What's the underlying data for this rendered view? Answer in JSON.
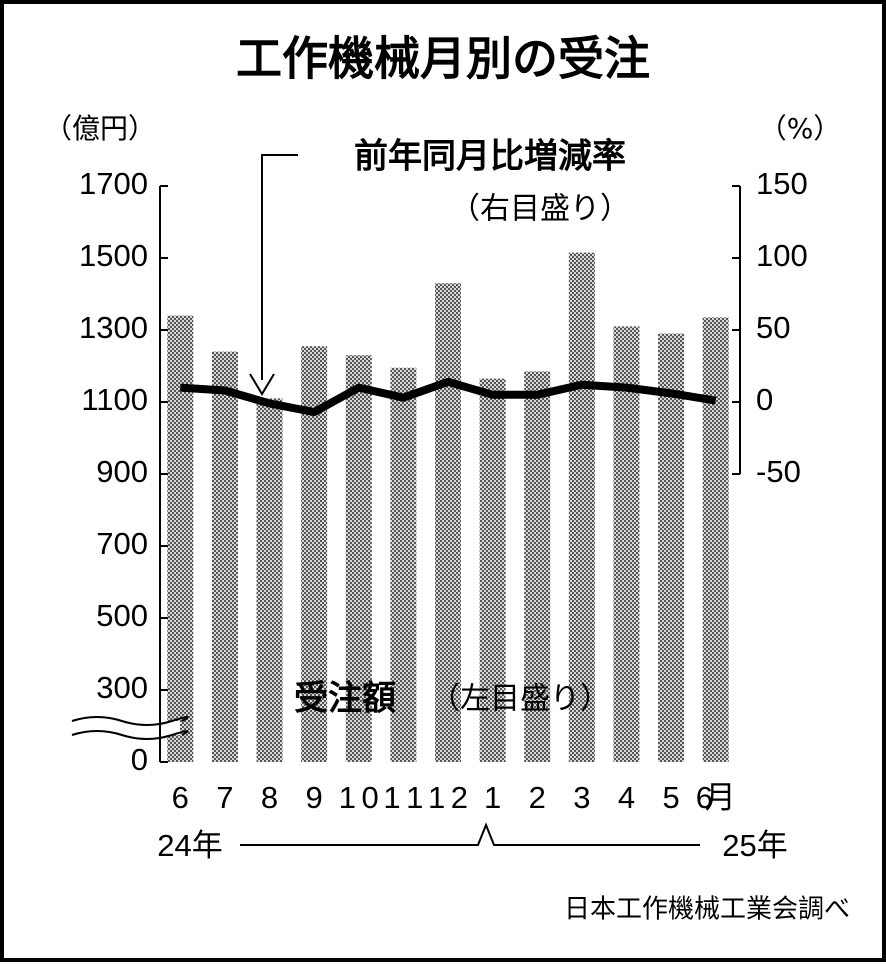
{
  "chart_data": {
    "type": "bar_line",
    "title": "工作機械月別の受注",
    "y_unit": "（億円）",
    "y2_unit": "（%）",
    "categories": [
      "6",
      "7",
      "8",
      "9",
      "10",
      "11",
      "12",
      "1",
      "2",
      "3",
      "4",
      "5",
      "6月"
    ],
    "years": [
      "24年",
      "25年"
    ],
    "series": [
      {
        "name": "受注額",
        "note": "（左目盛り）",
        "kind": "bar",
        "color": "#8c8c8c",
        "values": [
          1340,
          1240,
          1110,
          1255,
          1230,
          1195,
          1430,
          1165,
          1185,
          1515,
          1310,
          1290,
          1335
        ]
      },
      {
        "name": "前年同月比増減率",
        "note": "（右目盛り）",
        "kind": "line",
        "axis": "y2",
        "color": "#000000",
        "values": [
          10,
          8,
          -1,
          -7,
          10,
          3,
          14,
          5,
          5,
          12,
          10,
          6,
          1
        ]
      }
    ],
    "ylim": [
      0,
      1700
    ],
    "yticks": [
      0,
      300,
      500,
      700,
      900,
      1100,
      1300,
      1500,
      1700
    ],
    "y_break": [
      100,
      200
    ],
    "y2lim": [
      -50,
      150
    ],
    "y2ticks": [
      -50,
      0,
      50,
      100,
      150
    ],
    "source": "日本工作機械工業会調べ"
  }
}
